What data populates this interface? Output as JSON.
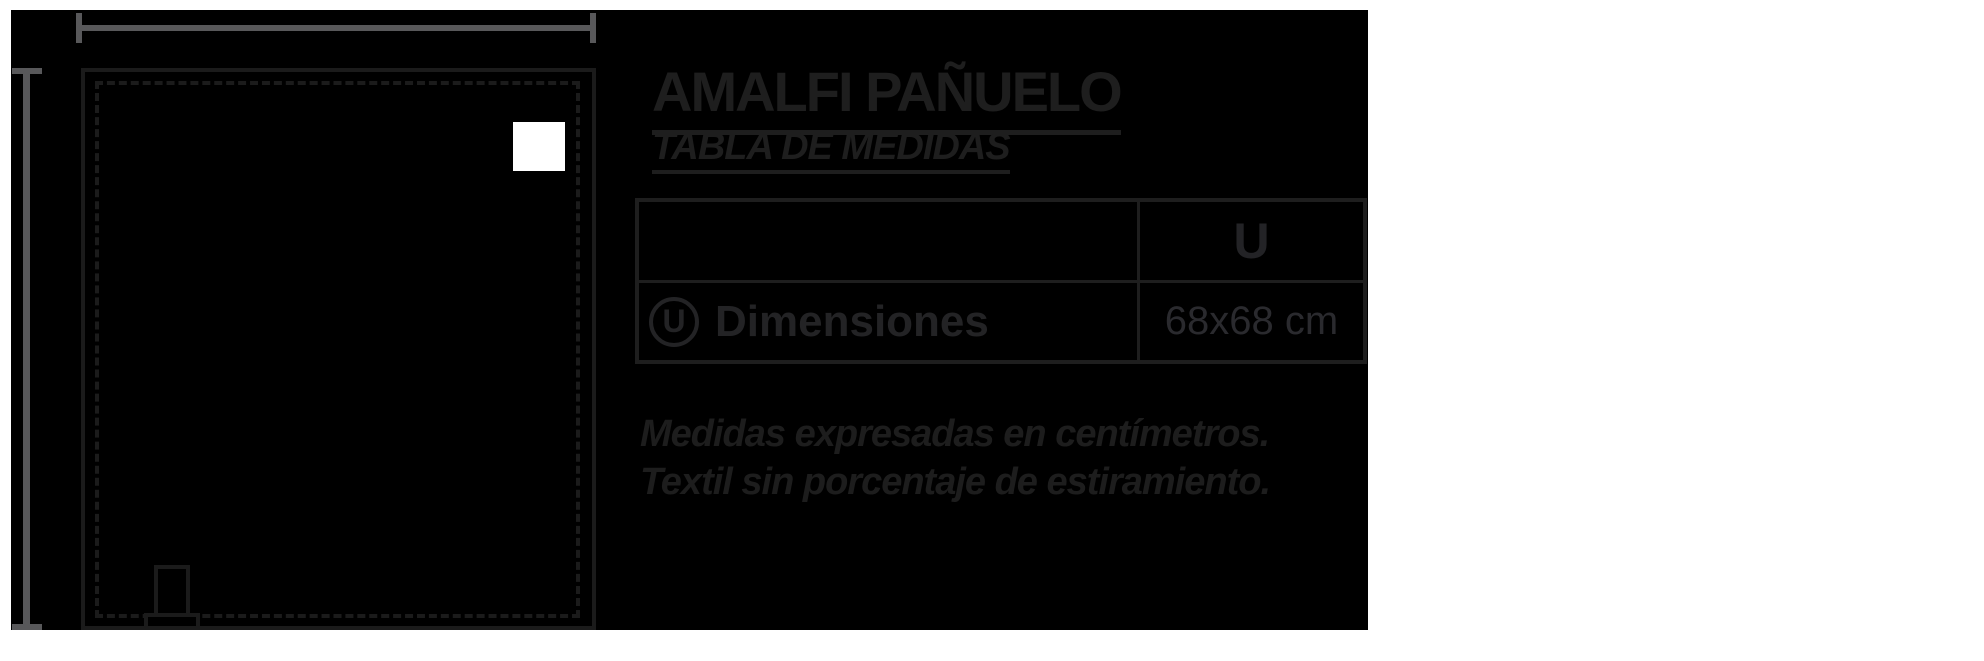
{
  "header": {
    "title": "AMALFI PAÑUELO",
    "subtitle": "TABLA DE MEDIDAS"
  },
  "size_table": {
    "size_header": "U",
    "row": {
      "icon_letter": "U",
      "label": "Dimensiones",
      "value": "68x68 cm"
    }
  },
  "notes": {
    "line1": "Medidas expresadas en centímetros.",
    "line2": "Textil sin porcentaje de estiramiento."
  },
  "colors": {
    "panel_background": "#000000",
    "page_background": "#ffffff",
    "dimension_line_gray": "#58585a",
    "outline_dark": "#1b1b1b",
    "patch_white": "#ffffff"
  }
}
